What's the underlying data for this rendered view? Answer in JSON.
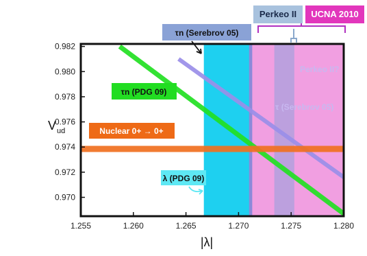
{
  "chart_data": {
    "type": "line",
    "xlabel": "|λ|",
    "ylabel": "V",
    "ylabel_sub": "ud",
    "xlim": [
      1.255,
      1.28
    ],
    "ylim": [
      0.9685,
      0.9822
    ],
    "x_ticks": [
      "1.255",
      "1.260",
      "1.265",
      "1.270",
      "1.275",
      "1.280"
    ],
    "x_tick_values": [
      1.255,
      1.26,
      1.265,
      1.27,
      1.275,
      1.28
    ],
    "y_ticks": [
      "0.970",
      "0.972",
      "0.974",
      "0.976",
      "0.978",
      "0.980",
      "0.982"
    ],
    "y_tick_values": [
      0.97,
      0.972,
      0.974,
      0.976,
      0.978,
      0.98,
      0.982
    ],
    "bands": [
      {
        "name": "λ (PDG 09)",
        "x": [
          1.2667,
          1.2713
        ],
        "color": "#1ed0f0",
        "opacity": 1.0
      },
      {
        "name": "UCNA 2010",
        "x": [
          1.271,
          1.28
        ],
        "color": "#e650c8",
        "opacity": 0.55
      },
      {
        "name": "Perkeo II",
        "x": [
          1.2734,
          1.2753
        ],
        "color": "#aaa0dc",
        "opacity": 0.75
      }
    ],
    "series": [
      {
        "name": "τn (PDG 09)",
        "x": [
          1.2587,
          1.28
        ],
        "y": [
          0.982,
          0.9687
        ],
        "color": "#22e022"
      },
      {
        "name": "τn (Serebrov 05)",
        "x": [
          1.2643,
          1.28
        ],
        "y": [
          0.981,
          0.9716
        ],
        "color": "#9a8ee8"
      },
      {
        "name": "Nuclear 0+ → 0+",
        "x": [
          1.255,
          1.28
        ],
        "y": [
          0.97385,
          0.97385
        ],
        "color": "#f07020"
      }
    ],
    "annotations": {
      "pdg_tau_label": "τn (PDG 09)",
      "serebrov_label": "τn (Serebrov 05)",
      "nuclear_label": "Nuclear  0+ → 0+",
      "lambda_label": "λ (PDG 09)",
      "perkeo_label": "Perkeo II",
      "ucna_label": "UCNA 2010",
      "faint_perkeo": "Perkeo II?",
      "faint_serebrov": "τ (Serebrov 05)"
    },
    "colors": {
      "lambda_box": "#5ee8f4",
      "perkeo_box": "#a8c2de",
      "ucna_box": "#e236bc",
      "serebrov_box": "#8aa2d6",
      "pdg_box": "#22dd22",
      "nuclear_box": "#ee6a16",
      "brace_color": "#b030c0"
    }
  }
}
